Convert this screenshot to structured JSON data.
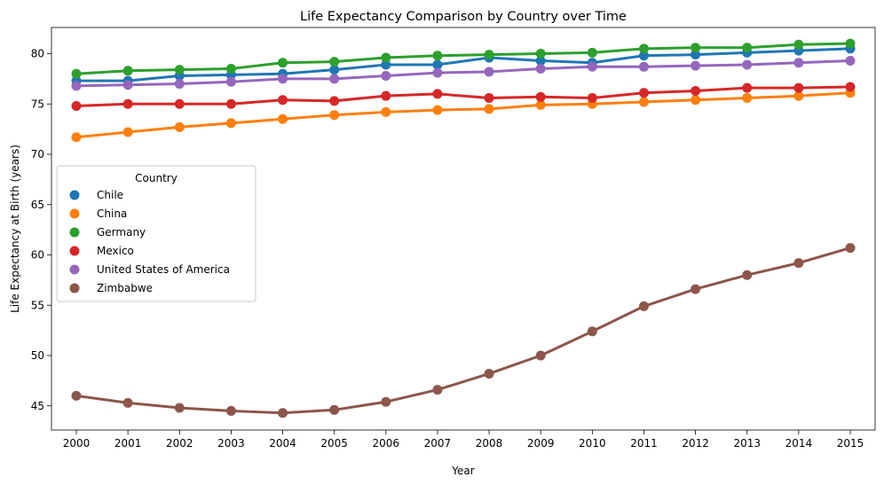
{
  "chart_data": {
    "type": "line",
    "title": "Life Expectancy Comparison by Country over Time",
    "xlabel": "Year",
    "ylabel": "Life Expectancy at Birth (years)",
    "x": [
      2000,
      2001,
      2002,
      2003,
      2004,
      2005,
      2006,
      2007,
      2008,
      2009,
      2010,
      2011,
      2012,
      2013,
      2014,
      2015
    ],
    "x_tick_labels": [
      "2000",
      "2001",
      "2002",
      "2003",
      "2004",
      "2005",
      "2006",
      "2007",
      "2008",
      "2009",
      "2010",
      "2011",
      "2012",
      "2013",
      "2014",
      "2015"
    ],
    "ylim": [
      42.6,
      82.6
    ],
    "y_ticks": [
      45,
      50,
      55,
      60,
      65,
      70,
      75,
      80
    ],
    "y_tick_labels": [
      "45",
      "50",
      "55",
      "60",
      "65",
      "70",
      "75",
      "80"
    ],
    "grid": false,
    "legend": {
      "title": "Country",
      "placement": "center-left"
    },
    "series": [
      {
        "name": "Chile",
        "color": "#1f77b4",
        "values": [
          77.3,
          77.3,
          77.8,
          77.9,
          78.0,
          78.4,
          78.9,
          78.9,
          79.6,
          79.3,
          79.1,
          79.8,
          79.9,
          80.1,
          80.3,
          80.5
        ]
      },
      {
        "name": "China",
        "color": "#ff7f0e",
        "values": [
          71.7,
          72.2,
          72.7,
          73.1,
          73.5,
          73.9,
          74.2,
          74.4,
          74.5,
          74.9,
          75.0,
          75.2,
          75.4,
          75.6,
          75.8,
          76.1
        ]
      },
      {
        "name": "Germany",
        "color": "#2ca02c",
        "values": [
          78.0,
          78.3,
          78.4,
          78.5,
          79.1,
          79.2,
          79.6,
          79.8,
          79.9,
          80.0,
          80.1,
          80.5,
          80.6,
          80.6,
          80.9,
          81.0
        ]
      },
      {
        "name": "Mexico",
        "color": "#d62728",
        "values": [
          74.8,
          75.0,
          75.0,
          75.0,
          75.4,
          75.3,
          75.8,
          76.0,
          75.6,
          75.7,
          75.6,
          76.1,
          76.3,
          76.6,
          76.6,
          76.7
        ]
      },
      {
        "name": "United States of America",
        "color": "#9467bd",
        "values": [
          76.8,
          76.9,
          77.0,
          77.2,
          77.5,
          77.5,
          77.8,
          78.1,
          78.2,
          78.5,
          78.7,
          78.7,
          78.8,
          78.9,
          79.1,
          79.3
        ]
      },
      {
        "name": "Zimbabwe",
        "color": "#8c564b",
        "values": [
          46.0,
          45.3,
          44.8,
          44.5,
          44.3,
          44.6,
          45.4,
          46.6,
          48.2,
          50.0,
          52.4,
          54.9,
          56.6,
          58.0,
          59.2,
          60.7
        ]
      }
    ]
  }
}
